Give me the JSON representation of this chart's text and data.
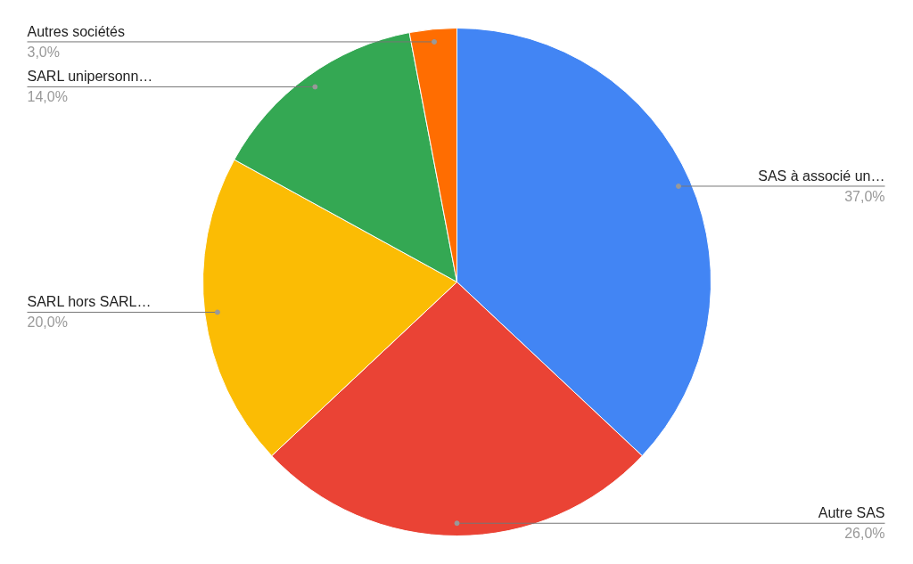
{
  "chart_data": {
    "type": "pie",
    "categories": [
      "SAS à associé un…",
      "Autre SAS",
      "SARL hors SARL…",
      "SARL unipersonn…",
      "Autres sociétés"
    ],
    "values": [
      37,
      26,
      20,
      14,
      3
    ],
    "colors": [
      "#4285f4",
      "#ea4335",
      "#fbbc04",
      "#34a853",
      "#ff6d01"
    ],
    "value_labels": [
      "37,0%",
      "26,0%",
      "20,0%",
      "14,0%",
      "3,0%"
    ]
  }
}
